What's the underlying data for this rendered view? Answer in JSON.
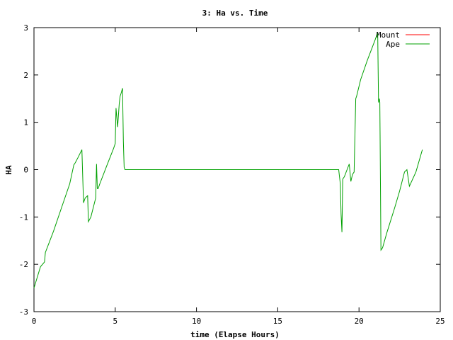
{
  "chart_data": {
    "type": "line",
    "title": "3: Ha vs. Time",
    "xlabel": "time (Elapse Hours)",
    "ylabel": "HA",
    "xlim": [
      0,
      25
    ],
    "ylim": [
      -3,
      3
    ],
    "xticks": [
      0,
      5,
      10,
      15,
      20,
      25
    ],
    "yticks": [
      -3,
      -2,
      -1,
      0,
      1,
      2,
      3
    ],
    "grid": false,
    "legend_position": "top-right",
    "series": [
      {
        "name": "Mount",
        "color": "#ff0000",
        "x": [],
        "y": []
      },
      {
        "name": "Ape",
        "color": "#00a000",
        "x": [
          0,
          0.4,
          0.65,
          0.7,
          1.2,
          1.7,
          2.2,
          2.45,
          2.55,
          2.7,
          2.95,
          3.05,
          3.15,
          3.3,
          3.35,
          3.5,
          3.8,
          3.85,
          3.9,
          3.95,
          4.05,
          4.5,
          4.9,
          5.0,
          5.05,
          5.15,
          5.25,
          5.3,
          5.35,
          5.45,
          5.5,
          5.55,
          5.6,
          8.0,
          12.0,
          16.0,
          18.75,
          18.85,
          18.9,
          18.95,
          19.0,
          19.1,
          19.4,
          19.5,
          19.6,
          19.7,
          19.8,
          19.85,
          20.1,
          20.5,
          21.0,
          21.15,
          21.2,
          21.25,
          21.28,
          21.3,
          21.35,
          21.45,
          21.7,
          22.2,
          22.5,
          22.8,
          22.95,
          23.1,
          23.5,
          23.9
        ],
        "y": [
          -2.5,
          -2.05,
          -1.95,
          -1.75,
          -1.3,
          -0.8,
          -0.3,
          0.1,
          0.15,
          0.25,
          0.42,
          -0.7,
          -0.6,
          -0.55,
          -1.1,
          -1.0,
          -0.6,
          0.12,
          -0.4,
          -0.4,
          -0.3,
          0.1,
          0.45,
          0.55,
          1.3,
          0.9,
          1.4,
          1.55,
          1.6,
          1.72,
          0.6,
          0.05,
          0.0,
          0.0,
          0.0,
          0.0,
          0.0,
          -0.3,
          -0.95,
          -1.32,
          -0.2,
          -0.15,
          0.12,
          -0.25,
          -0.1,
          -0.05,
          1.5,
          1.55,
          1.9,
          2.3,
          2.75,
          2.9,
          1.42,
          1.5,
          1.42,
          0.7,
          -1.7,
          -1.65,
          -1.35,
          -0.8,
          -0.45,
          -0.05,
          0.0,
          -0.35,
          -0.05,
          0.42
        ]
      }
    ]
  }
}
